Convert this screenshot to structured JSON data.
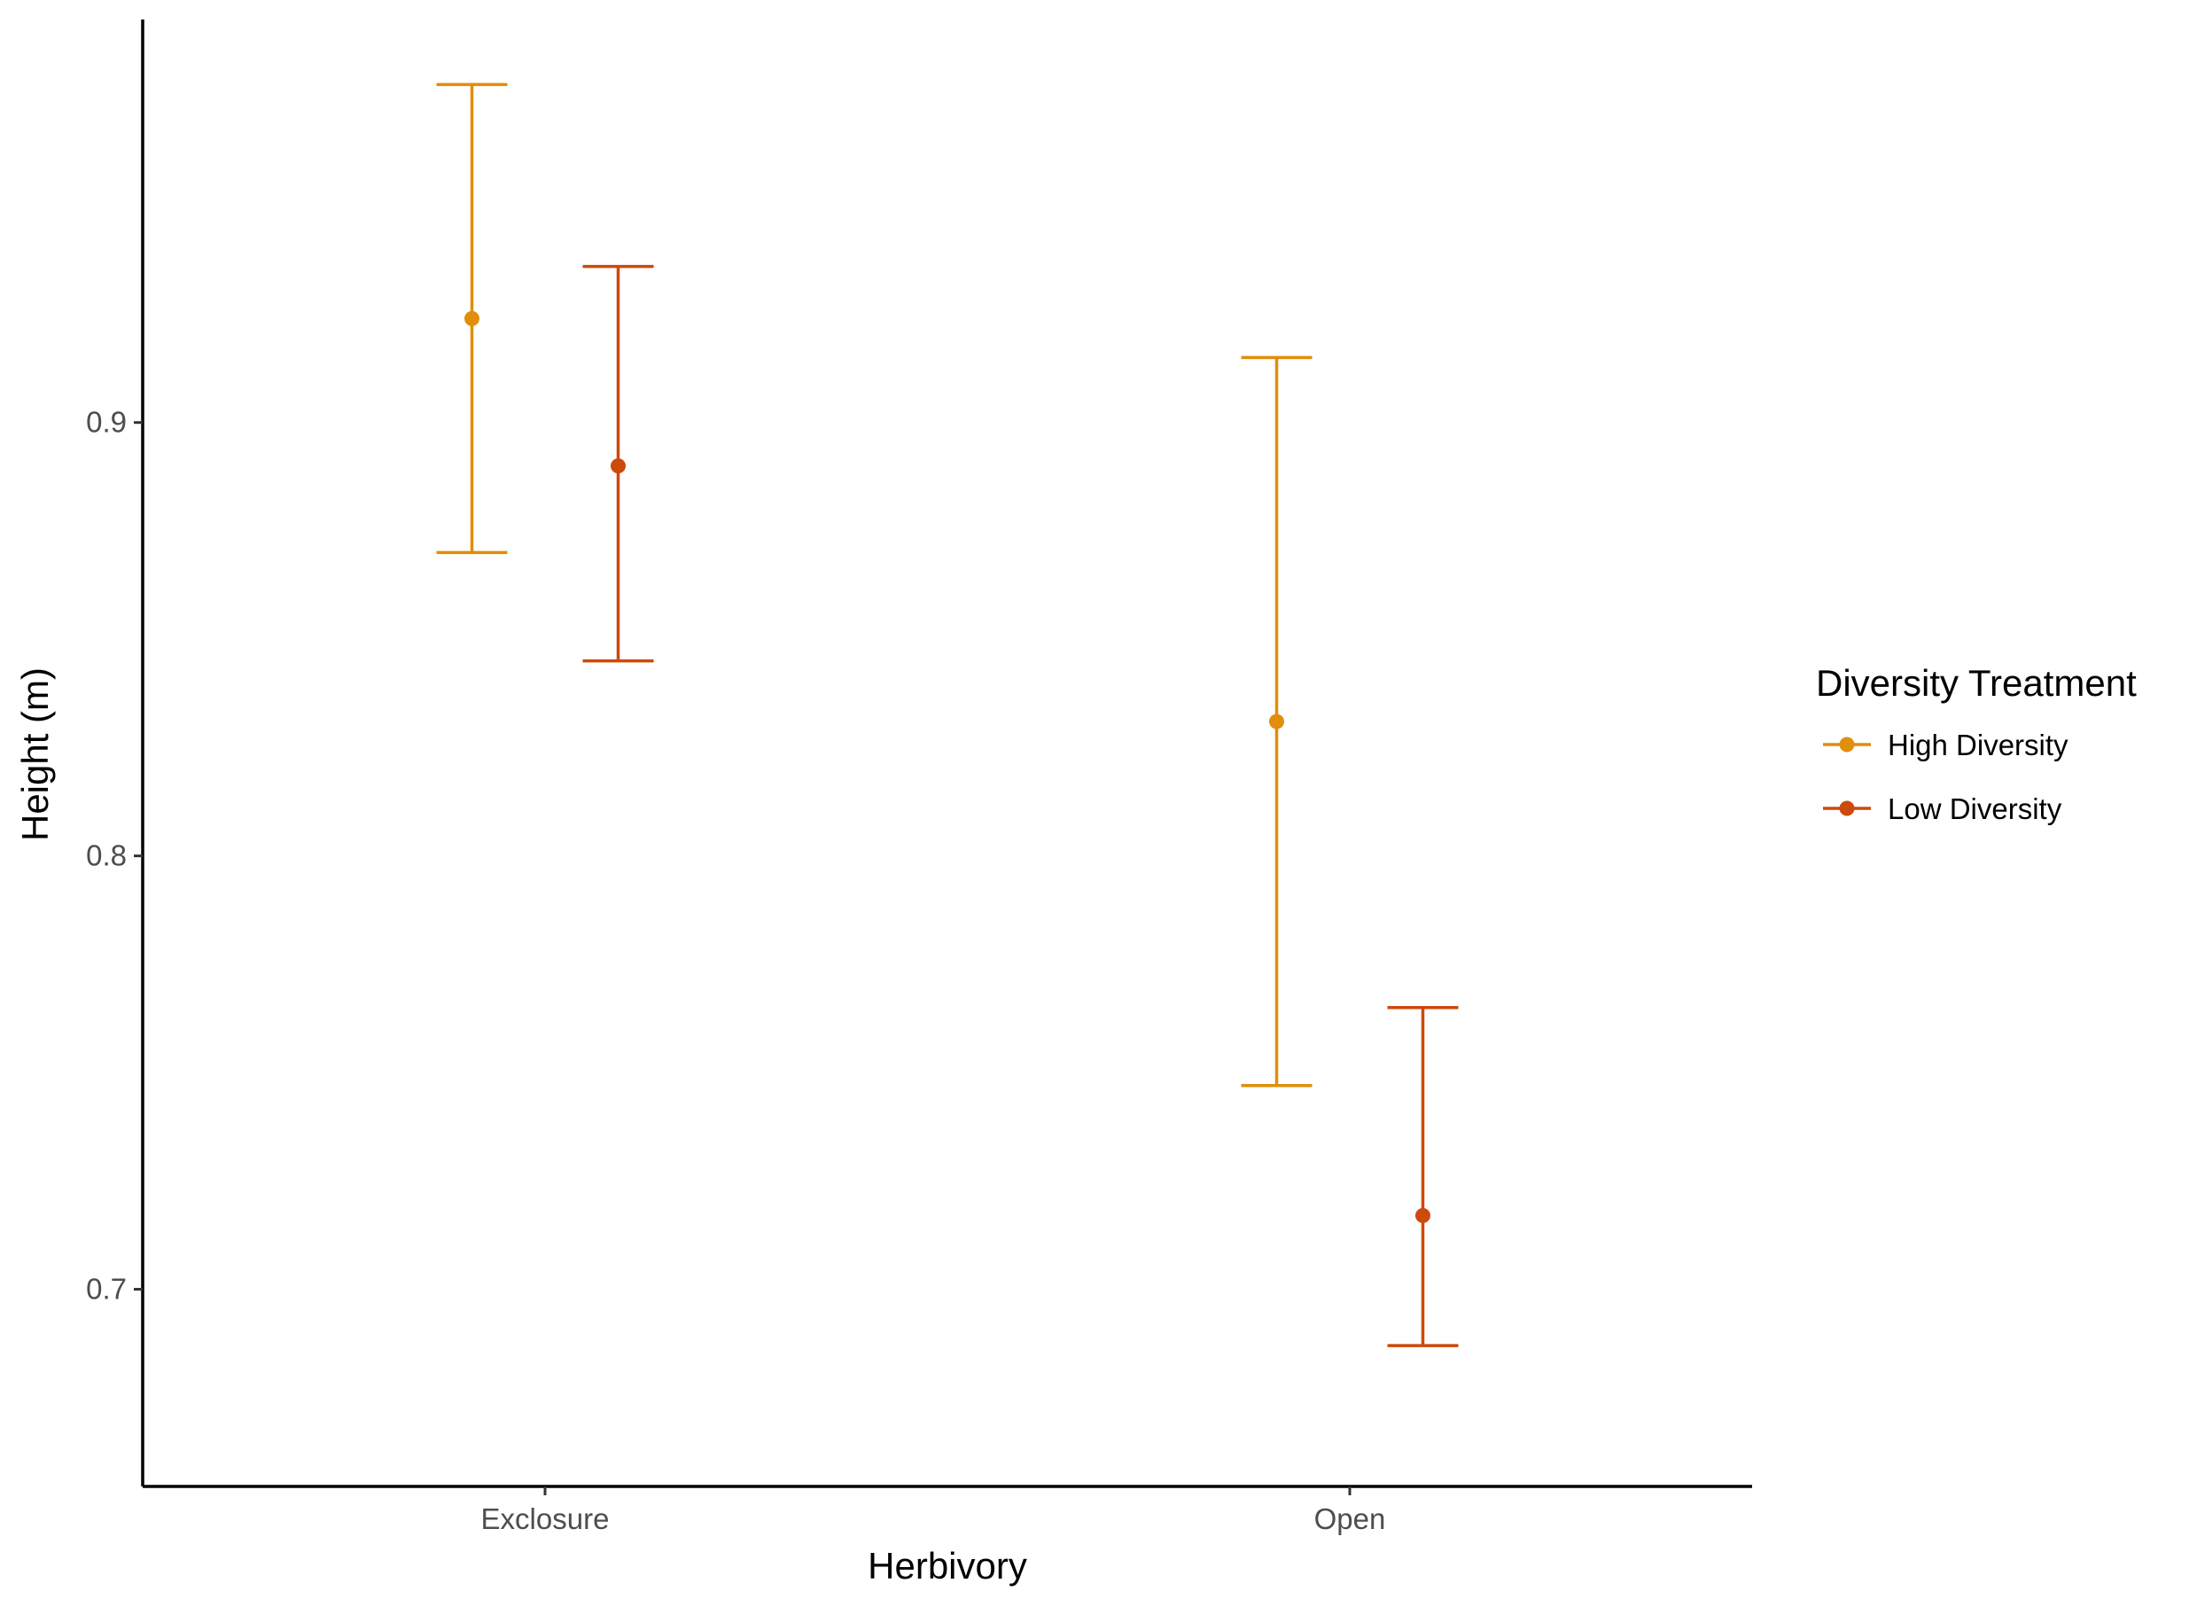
{
  "chart_data": {
    "type": "scatter",
    "subtype": "point-errorbar",
    "title": "",
    "xlabel": "Herbivory",
    "ylabel": "Height (m)",
    "categories": [
      "Exclosure",
      "Open"
    ],
    "ylim": [
      0.6545,
      0.993
    ],
    "yticks": [
      0.7,
      0.8,
      0.9
    ],
    "ytick_labels": [
      "0.7",
      "0.8",
      "0.9"
    ],
    "grid": false,
    "legend": {
      "title": "Diversity Treatment",
      "placement": "right"
    },
    "series": [
      {
        "name": "High Diversity",
        "color": "#E08E0B",
        "values": [
          0.924,
          0.831
        ],
        "lower": [
          0.87,
          0.747
        ],
        "upper": [
          0.978,
          0.915
        ]
      },
      {
        "name": "Low Diversity",
        "color": "#CC4A0A",
        "values": [
          0.89,
          0.717
        ],
        "lower": [
          0.845,
          0.687
        ],
        "upper": [
          0.936,
          0.765
        ]
      }
    ]
  }
}
